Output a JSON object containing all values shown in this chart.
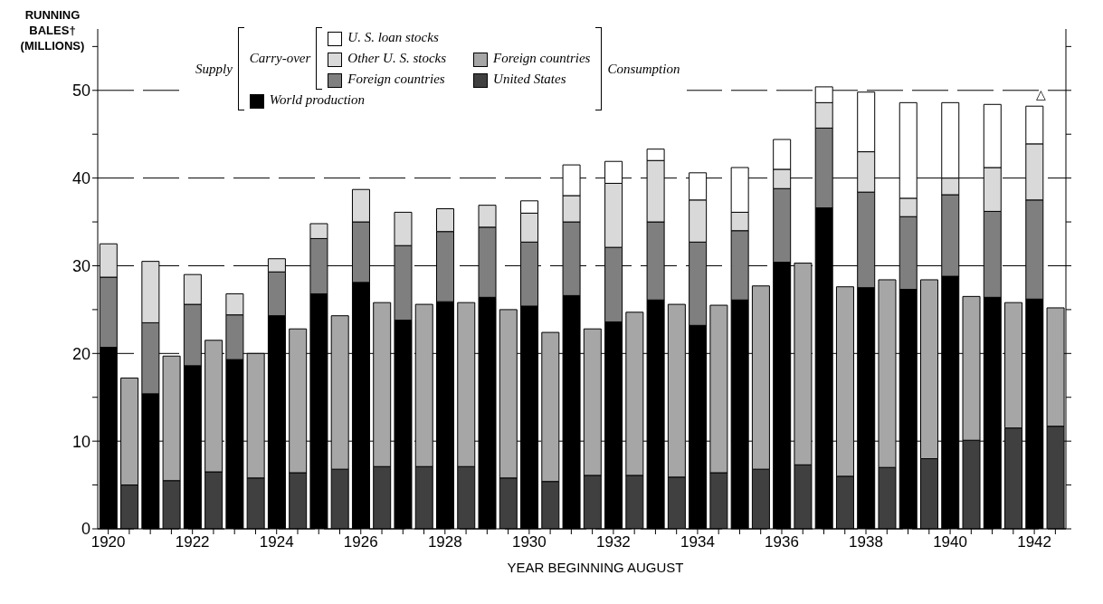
{
  "chart_data": {
    "type": "bar",
    "stacked": true,
    "ylabel": "RUNNING\nBALES†\n(MILLIONS)",
    "xlabel": "YEAR BEGINNING AUGUST",
    "categories": [
      "1920",
      null,
      null,
      null,
      "1922",
      null,
      null,
      null,
      "1924",
      null,
      null,
      null,
      "1926",
      null,
      null,
      null,
      "1928",
      null,
      null,
      null,
      "1930",
      null,
      null,
      null,
      "1932",
      null,
      null,
      null,
      "1934",
      null,
      null,
      null,
      "1936",
      null,
      null,
      null,
      "1938",
      null,
      null,
      null,
      "1940",
      null,
      null,
      null,
      "1942",
      null
    ],
    "series": [
      {
        "name": "World production",
        "color": "#000000",
        "values": [
          20.7,
          null,
          15.4,
          null,
          18.6,
          null,
          19.3,
          null,
          24.3,
          null,
          26.8,
          null,
          28.1,
          null,
          23.8,
          null,
          25.9,
          null,
          26.4,
          null,
          25.4,
          null,
          26.6,
          null,
          23.6,
          null,
          26.1,
          null,
          23.2,
          null,
          26.1,
          null,
          30.4,
          null,
          36.6,
          null,
          27.5,
          null,
          27.3,
          null,
          28.8,
          null,
          26.4,
          null,
          26.2,
          null
        ]
      },
      {
        "name": "Foreign countries",
        "color": "#7f7f7f",
        "values": [
          8.0,
          null,
          8.1,
          null,
          7.0,
          null,
          5.1,
          null,
          5.0,
          null,
          6.3,
          null,
          6.9,
          null,
          8.5,
          null,
          8.0,
          null,
          8.0,
          null,
          7.3,
          null,
          8.4,
          null,
          8.5,
          null,
          8.9,
          null,
          9.5,
          null,
          7.9,
          null,
          8.4,
          null,
          9.1,
          null,
          10.9,
          null,
          8.3,
          null,
          9.3,
          null,
          9.8,
          null,
          11.3,
          null
        ]
      },
      {
        "name": "Other U. S. stocks",
        "color": "#d9d9d9",
        "values": [
          3.8,
          null,
          7.0,
          null,
          3.4,
          null,
          2.4,
          null,
          1.5,
          null,
          1.7,
          null,
          3.7,
          null,
          3.8,
          null,
          2.6,
          null,
          2.5,
          null,
          3.3,
          null,
          3.0,
          null,
          7.3,
          null,
          7.0,
          null,
          4.8,
          null,
          2.1,
          null,
          2.2,
          null,
          2.9,
          null,
          4.6,
          null,
          2.1,
          null,
          1.9,
          null,
          5.0,
          null,
          6.4,
          null
        ]
      },
      {
        "name": "U. S. loan stocks",
        "color": "#ffffff",
        "values": [
          null,
          null,
          null,
          null,
          null,
          null,
          null,
          null,
          null,
          null,
          null,
          null,
          null,
          null,
          null,
          null,
          null,
          null,
          null,
          null,
          1.4,
          null,
          3.5,
          null,
          2.5,
          null,
          1.3,
          null,
          3.1,
          null,
          5.1,
          null,
          3.4,
          null,
          1.8,
          null,
          6.8,
          null,
          10.9,
          null,
          8.6,
          null,
          7.2,
          null,
          4.3,
          null
        ]
      },
      {
        "name": "United States",
        "color": "#404040",
        "values": [
          null,
          5.0,
          null,
          5.5,
          null,
          6.5,
          null,
          5.8,
          null,
          6.4,
          null,
          6.8,
          null,
          7.1,
          null,
          7.1,
          null,
          7.1,
          null,
          5.8,
          null,
          5.4,
          null,
          6.1,
          null,
          6.1,
          null,
          5.9,
          null,
          6.4,
          null,
          6.8,
          null,
          7.3,
          null,
          6.0,
          null,
          7.0,
          null,
          8.0,
          null,
          10.1,
          null,
          11.5,
          null,
          11.7
        ]
      },
      {
        "name": "Foreign countries",
        "color": "#a6a6a6",
        "values": [
          null,
          12.2,
          null,
          14.2,
          null,
          15.0,
          null,
          14.2,
          null,
          16.4,
          null,
          17.5,
          null,
          18.7,
          null,
          18.5,
          null,
          18.7,
          null,
          19.2,
          null,
          17.0,
          null,
          16.7,
          null,
          18.6,
          null,
          19.7,
          null,
          19.1,
          null,
          20.9,
          null,
          23.0,
          null,
          21.6,
          null,
          21.4,
          null,
          20.4,
          null,
          16.4,
          null,
          14.3,
          null,
          13.5
        ]
      }
    ],
    "ylim": [
      0,
      57
    ],
    "yticks": [
      0,
      {
        "value": 5,
        "label": null
      },
      10,
      {
        "value": 15,
        "label": null
      },
      20,
      {
        "value": 25,
        "label": null
      },
      30,
      {
        "value": 35,
        "label": null
      },
      40,
      {
        "value": 45,
        "label": null
      },
      50,
      {
        "value": 55,
        "label": null
      }
    ],
    "grid": "y",
    "legend": "top",
    "annotations": [
      "Supply",
      "Carry-over",
      "Consumption",
      "△"
    ]
  }
}
